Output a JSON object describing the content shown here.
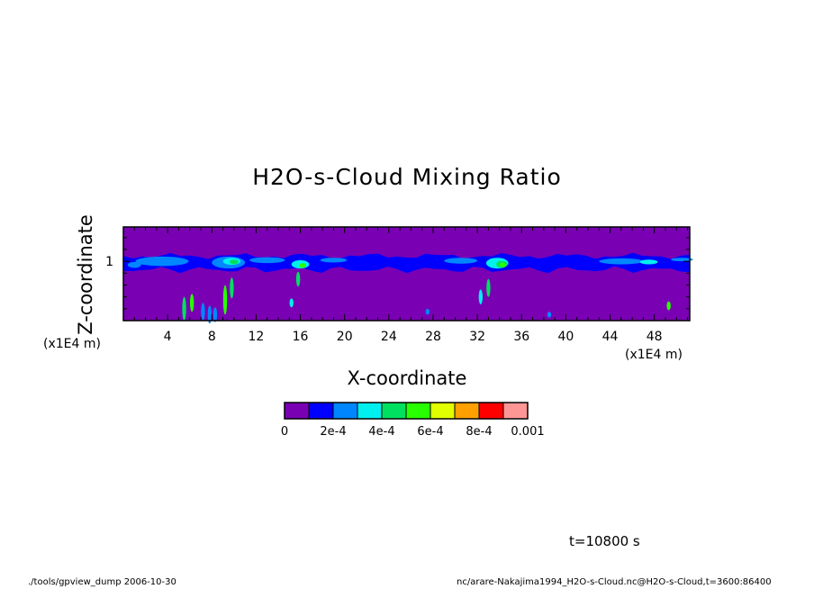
{
  "chart_data": {
    "type": "heatmap",
    "title": "H2O-s-Cloud Mixing Ratio",
    "xlabel": "X-coordinate",
    "ylabel": "Z-coordinate",
    "x_unit": "(x1E4 m)",
    "y_unit": "(x1E4 m)",
    "x_ticks": [
      "4",
      "8",
      "12",
      "16",
      "20",
      "24",
      "28",
      "32",
      "36",
      "40",
      "44",
      "48"
    ],
    "y_ticks": [
      "1"
    ],
    "colorbar": {
      "labels": [
        "0",
        "2e-4",
        "4e-4",
        "6e-4",
        "8e-4",
        "0.001"
      ],
      "colors": [
        "#7a00b4",
        "#0000ff",
        "#0087ff",
        "#00f0f0",
        "#00e060",
        "#28ff00",
        "#e1ff00",
        "#ffa000",
        "#ff0000",
        "#ff9696"
      ]
    },
    "cloud_layer": {
      "z_center": 1.0,
      "z_range": [
        0.85,
        1.1
      ],
      "x_range": [
        0.4,
        51.2
      ],
      "peak_value": "6e-4 to 8e-4"
    }
  },
  "annotation": {
    "time": "t=10800 s",
    "footer_left": "./tools/gpview_dump  2006-10-30",
    "footer_right": "nc/arare-Nakajima1994_H2O-s-Cloud.nc@H2O-s-Cloud,t=3600:86400"
  }
}
